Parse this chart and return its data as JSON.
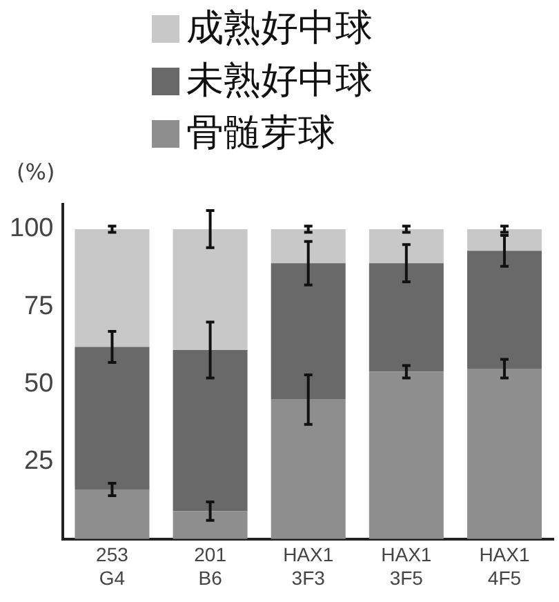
{
  "chart_data": {
    "type": "bar",
    "stacked": true,
    "ylabel": "(%)",
    "categories": [
      "253 G4",
      "201 B6",
      "HAX1 3F3",
      "HAX1 3F5",
      "HAX1 4F5"
    ],
    "series": [
      {
        "name": "骨髄芽球",
        "color": "#8e8e8e",
        "values": [
          16,
          9,
          45,
          54,
          55
        ],
        "errors": [
          2,
          3,
          8,
          2,
          3
        ]
      },
      {
        "name": "未熟好中球",
        "color": "#696969",
        "values": [
          46,
          52,
          44,
          35,
          38
        ],
        "errors": [
          5,
          9,
          7,
          6,
          5
        ]
      },
      {
        "name": "成熟好中球",
        "color": "#c8c8c8",
        "values": [
          38,
          39,
          11,
          11,
          7
        ],
        "errors": [
          1,
          6,
          1,
          1,
          1
        ]
      }
    ],
    "ylim": [
      0,
      108
    ],
    "yticks": [
      25,
      50,
      75,
      100
    ],
    "grid": false,
    "legend": "top"
  }
}
